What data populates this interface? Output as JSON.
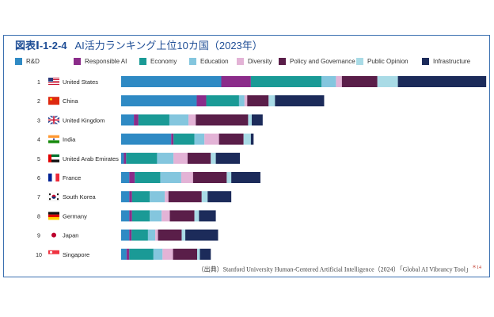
{
  "figure": {
    "number": "図表Ⅰ-1-2-4",
    "title": "AI活力ランキング上位10カ国（2023年）",
    "source": "（出典）Stanford University Human-Centered Artificial Intelligence（2024）「Global AI Vibrancy Tool」",
    "source_note": "＊14"
  },
  "chart_data": {
    "type": "bar",
    "orientation": "horizontal",
    "stacked": true,
    "legend_position": "top",
    "grid": false,
    "xlim": [
      0,
      80
    ],
    "categories": [
      "United States",
      "China",
      "United Kingdom",
      "India",
      "United Arab Emirates",
      "France",
      "South Korea",
      "Germany",
      "Japan",
      "Singapore"
    ],
    "ranks": [
      "1",
      "2",
      "3",
      "4",
      "5",
      "6",
      "7",
      "8",
      "9",
      "10"
    ],
    "flags": [
      "us-flag-icon",
      "cn-flag-icon",
      "gb-flag-icon",
      "in-flag-icon",
      "ae-flag-icon",
      "fr-flag-icon",
      "kr-flag-icon",
      "de-flag-icon",
      "jp-flag-icon",
      "sg-flag-icon"
    ],
    "series": [
      {
        "name": "R&D",
        "color": "#2f8ac4",
        "values": [
          22.0,
          16.6,
          2.8,
          11.0,
          0.6,
          1.8,
          1.8,
          1.8,
          1.8,
          1.2
        ]
      },
      {
        "name": "Responsible AI",
        "color": "#8b2c8a",
        "values": [
          6.5,
          2.1,
          1.0,
          0.5,
          0.5,
          1.2,
          0.6,
          0.6,
          0.5,
          0.6
        ]
      },
      {
        "name": "Economy",
        "color": "#1a9a96",
        "values": [
          15.5,
          7.2,
          6.8,
          4.6,
          6.8,
          5.6,
          3.9,
          3.9,
          3.6,
          5.3
        ]
      },
      {
        "name": "Education",
        "color": "#84c6de",
        "values": [
          3.2,
          1.2,
          4.2,
          2.2,
          3.6,
          4.6,
          3.3,
          2.6,
          1.6,
          2.0
        ]
      },
      {
        "name": "Diversity",
        "color": "#e3b3d6",
        "values": [
          1.3,
          0.6,
          1.6,
          3.2,
          3.1,
          2.6,
          0.8,
          1.8,
          0.6,
          2.3
        ]
      },
      {
        "name": "Policy and Governance",
        "color": "#5a1e49",
        "values": [
          7.8,
          4.7,
          11.5,
          5.4,
          5.1,
          7.4,
          7.3,
          5.4,
          5.2,
          5.3
        ]
      },
      {
        "name": "Public Opinion",
        "color": "#a9dbe6",
        "values": [
          4.5,
          1.4,
          0.8,
          1.6,
          1.1,
          1.0,
          1.3,
          1.0,
          0.8,
          0.6
        ]
      },
      {
        "name": "Infrastructure",
        "color": "#1c2b5a",
        "values": [
          19.4,
          10.8,
          2.4,
          0.6,
          5.3,
          6.4,
          5.2,
          3.7,
          7.2,
          2.4
        ]
      }
    ]
  }
}
